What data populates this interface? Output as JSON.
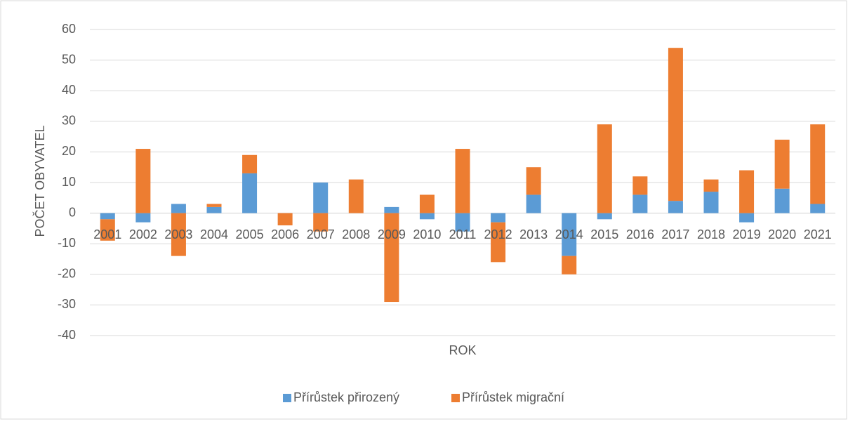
{
  "chart_data": {
    "type": "stacked_bar",
    "x_label": "ROK",
    "y_label": "POČET OBYVATEL",
    "categories": [
      "2001",
      "2002",
      "2003",
      "2004",
      "2005",
      "2006",
      "2007",
      "2008",
      "2009",
      "2010",
      "2011",
      "2012",
      "2013",
      "2014",
      "2015",
      "2016",
      "2017",
      "2018",
      "2019",
      "2020",
      "2021"
    ],
    "series": [
      {
        "name": "Přírůstek přirozený",
        "color": "#5b9bd5",
        "values": [
          -2,
          -3,
          3,
          2,
          13,
          0,
          10,
          0,
          2,
          -2,
          -6,
          -3,
          6,
          -14,
          -2,
          6,
          4,
          7,
          -3,
          8,
          3
        ]
      },
      {
        "name": "Přírůstek migrační",
        "color": "#ed7d31",
        "values": [
          -7,
          21,
          -14,
          1,
          6,
          -4,
          -6,
          11,
          -29,
          6,
          21,
          -13,
          9,
          -6,
          29,
          6,
          50,
          4,
          14,
          16,
          26
        ]
      }
    ],
    "ylim": [
      -40,
      60
    ],
    "yticks": [
      -40,
      -30,
      -20,
      -10,
      0,
      10,
      20,
      30,
      40,
      50,
      60
    ],
    "grid": true,
    "legend": "bottom"
  }
}
